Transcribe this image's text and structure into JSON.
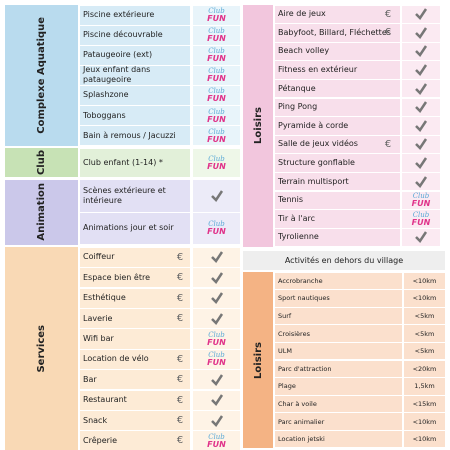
{
  "logo": [
    "Club",
    "FUN"
  ],
  "left": [
    {
      "title": "Complexe Aquatique",
      "rows": [
        {
          "label": "Piscine extérieure",
          "icon": "logo"
        },
        {
          "label": "Piscine découvrable",
          "icon": "logo"
        },
        {
          "label": "Pataugeoire (ext)",
          "icon": "logo"
        },
        {
          "label": "Jeux enfant dans pataugeoire",
          "icon": "logo"
        },
        {
          "label": "Splashzone",
          "icon": "logo"
        },
        {
          "label": "Toboggans",
          "icon": "logo"
        },
        {
          "label": "Bain à remous / Jacuzzi",
          "icon": "logo"
        }
      ]
    },
    {
      "title": "Club",
      "rows": [
        {
          "label": "Club enfant (1-14) *",
          "icon": "logo"
        }
      ]
    },
    {
      "title": "Animation",
      "rows": [
        {
          "label": "Scènes extérieure et intérieure",
          "icon": "check"
        },
        {
          "label": "Animations jour et soir",
          "icon": "logo"
        }
      ]
    },
    {
      "title": "Services",
      "rows": [
        {
          "label": "Coiffeur",
          "price": "€",
          "icon": "check"
        },
        {
          "label": "Espace bien être",
          "price": "€",
          "icon": "check"
        },
        {
          "label": "Esthétique",
          "price": "€",
          "icon": "check"
        },
        {
          "label": "Laverie",
          "price": "€",
          "icon": "check"
        },
        {
          "label": "Wifi bar",
          "icon": "logo"
        },
        {
          "label": "Location de vélo",
          "price": "€",
          "icon": "logo"
        },
        {
          "label": "Bar",
          "price": "€",
          "icon": "check"
        },
        {
          "label": "Restaurant",
          "price": "€",
          "icon": "check"
        },
        {
          "label": "Snack",
          "price": "€",
          "icon": "check"
        },
        {
          "label": "Crêperie",
          "price": "€",
          "icon": "logo"
        }
      ]
    }
  ],
  "right": {
    "title": "Loisirs",
    "rows": [
      {
        "label": "Aire de jeux",
        "price": "€",
        "icon": "check"
      },
      {
        "label": "Babyfoot, Billard, Fléchettes",
        "price": "€",
        "icon": "check"
      },
      {
        "label": "Beach volley",
        "icon": "check"
      },
      {
        "label": "Fitness en extérieur",
        "icon": "check"
      },
      {
        "label": "Pétanque",
        "icon": "check"
      },
      {
        "label": "Ping Pong",
        "icon": "check"
      },
      {
        "label": "Pyramide à corde",
        "icon": "check"
      },
      {
        "label": "Salle de jeux vidéos",
        "price": "€",
        "icon": "check"
      },
      {
        "label": "Structure gonflable",
        "icon": "check"
      },
      {
        "label": "Terrain multisport",
        "icon": "check"
      },
      {
        "label": "Tennis",
        "icon": "logo"
      },
      {
        "label": "Tir à l'arc",
        "icon": "logo"
      },
      {
        "label": "Tyrolienne",
        "icon": "check"
      }
    ]
  },
  "outside": {
    "header": "Activités en dehors du village",
    "title": "Loisirs",
    "rows": [
      {
        "label": "Accrobranche",
        "distance": "<10km"
      },
      {
        "label": "Sport nautiques",
        "distance": "<10km"
      },
      {
        "label": "Surf",
        "distance": "<5km"
      },
      {
        "label": "Croisières",
        "distance": "<5km"
      },
      {
        "label": "ULM",
        "distance": "<5km"
      },
      {
        "label": "Parc d'attraction",
        "distance": "<20km"
      },
      {
        "label": "Plage",
        "distance": "1,5km"
      },
      {
        "label": "Char à voile",
        "distance": "<15km"
      },
      {
        "label": "Parc animalier",
        "distance": "<10km"
      },
      {
        "label": "Location jetski",
        "distance": "<10km"
      }
    ]
  }
}
